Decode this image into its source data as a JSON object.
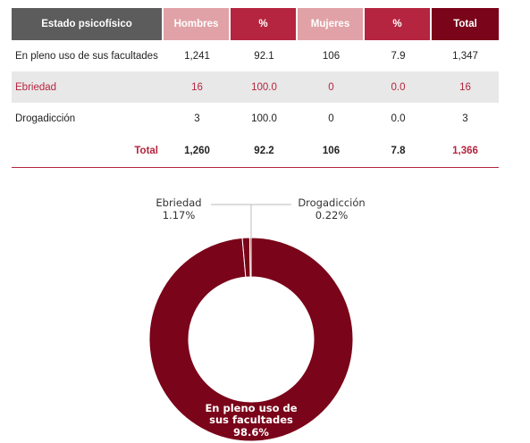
{
  "table": {
    "headers": [
      "Estado psicofísico",
      "Hombres",
      "%",
      "Mujeres",
      "%",
      "Total"
    ],
    "rows": [
      {
        "label": "En pleno uso de sus facultades",
        "hombres": "1,241",
        "pct_h": "92.1",
        "mujeres": "106",
        "pct_m": "7.9",
        "total": "1,347"
      },
      {
        "label": "Ebriedad",
        "hombres": "16",
        "pct_h": "100.0",
        "mujeres": "0",
        "pct_m": "0.0",
        "total": "16"
      },
      {
        "label": "Drogadicción",
        "hombres": "3",
        "pct_h": "100.0",
        "mujeres": "0",
        "pct_m": "0.0",
        "total": "3"
      }
    ],
    "total": {
      "label": "Total",
      "hombres": "1,260",
      "pct_h": "92.2",
      "mujeres": "106",
      "pct_m": "7.8",
      "total": "1,366"
    }
  },
  "chart_data": {
    "type": "pie",
    "slices": [
      {
        "label": "En pleno uso de sus facultades",
        "lines": [
          "En pleno uso de",
          "sus facultades"
        ],
        "pct_text": "98.6%",
        "value": 98.6
      },
      {
        "label": "Ebriedad",
        "lines": [
          "Ebriedad"
        ],
        "pct_text": "1.17%",
        "value": 1.17
      },
      {
        "label": "Drogadicción",
        "lines": [
          "Drogadicción"
        ],
        "pct_text": "0.22%",
        "value": 0.22
      }
    ],
    "colors": {
      "main": "#7a0419",
      "small": "#7a0419",
      "separator": "#ffffff",
      "leader": "#bbbbbb"
    },
    "donut": true
  }
}
